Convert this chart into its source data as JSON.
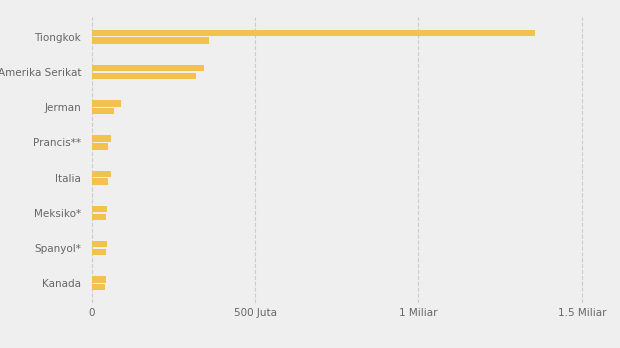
{
  "countries": [
    "Tiongkok",
    "Amerika Serikat",
    "Jerman",
    "Prancis**",
    "Italia",
    "Meksiko*",
    "Spanyol*",
    "Kanada"
  ],
  "doses": [
    1358000000,
    345000000,
    90000000,
    58000000,
    58000000,
    48000000,
    48000000,
    43000000
  ],
  "vaccinated": [
    358000000,
    320000000,
    68000000,
    51000000,
    50000000,
    44000000,
    44000000,
    40000000
  ],
  "bar_color": "#F2C14E",
  "background_color": "#EFEFEF",
  "grid_color": "#CCCCCC",
  "xlabel_ticks": [
    0,
    500000000,
    1000000000,
    1500000000
  ],
  "xlabel_labels": [
    "0",
    "500 Juta",
    "1 Miliar",
    "1.5 Miliar"
  ],
  "xlim": [
    -15000000,
    1560000000
  ]
}
